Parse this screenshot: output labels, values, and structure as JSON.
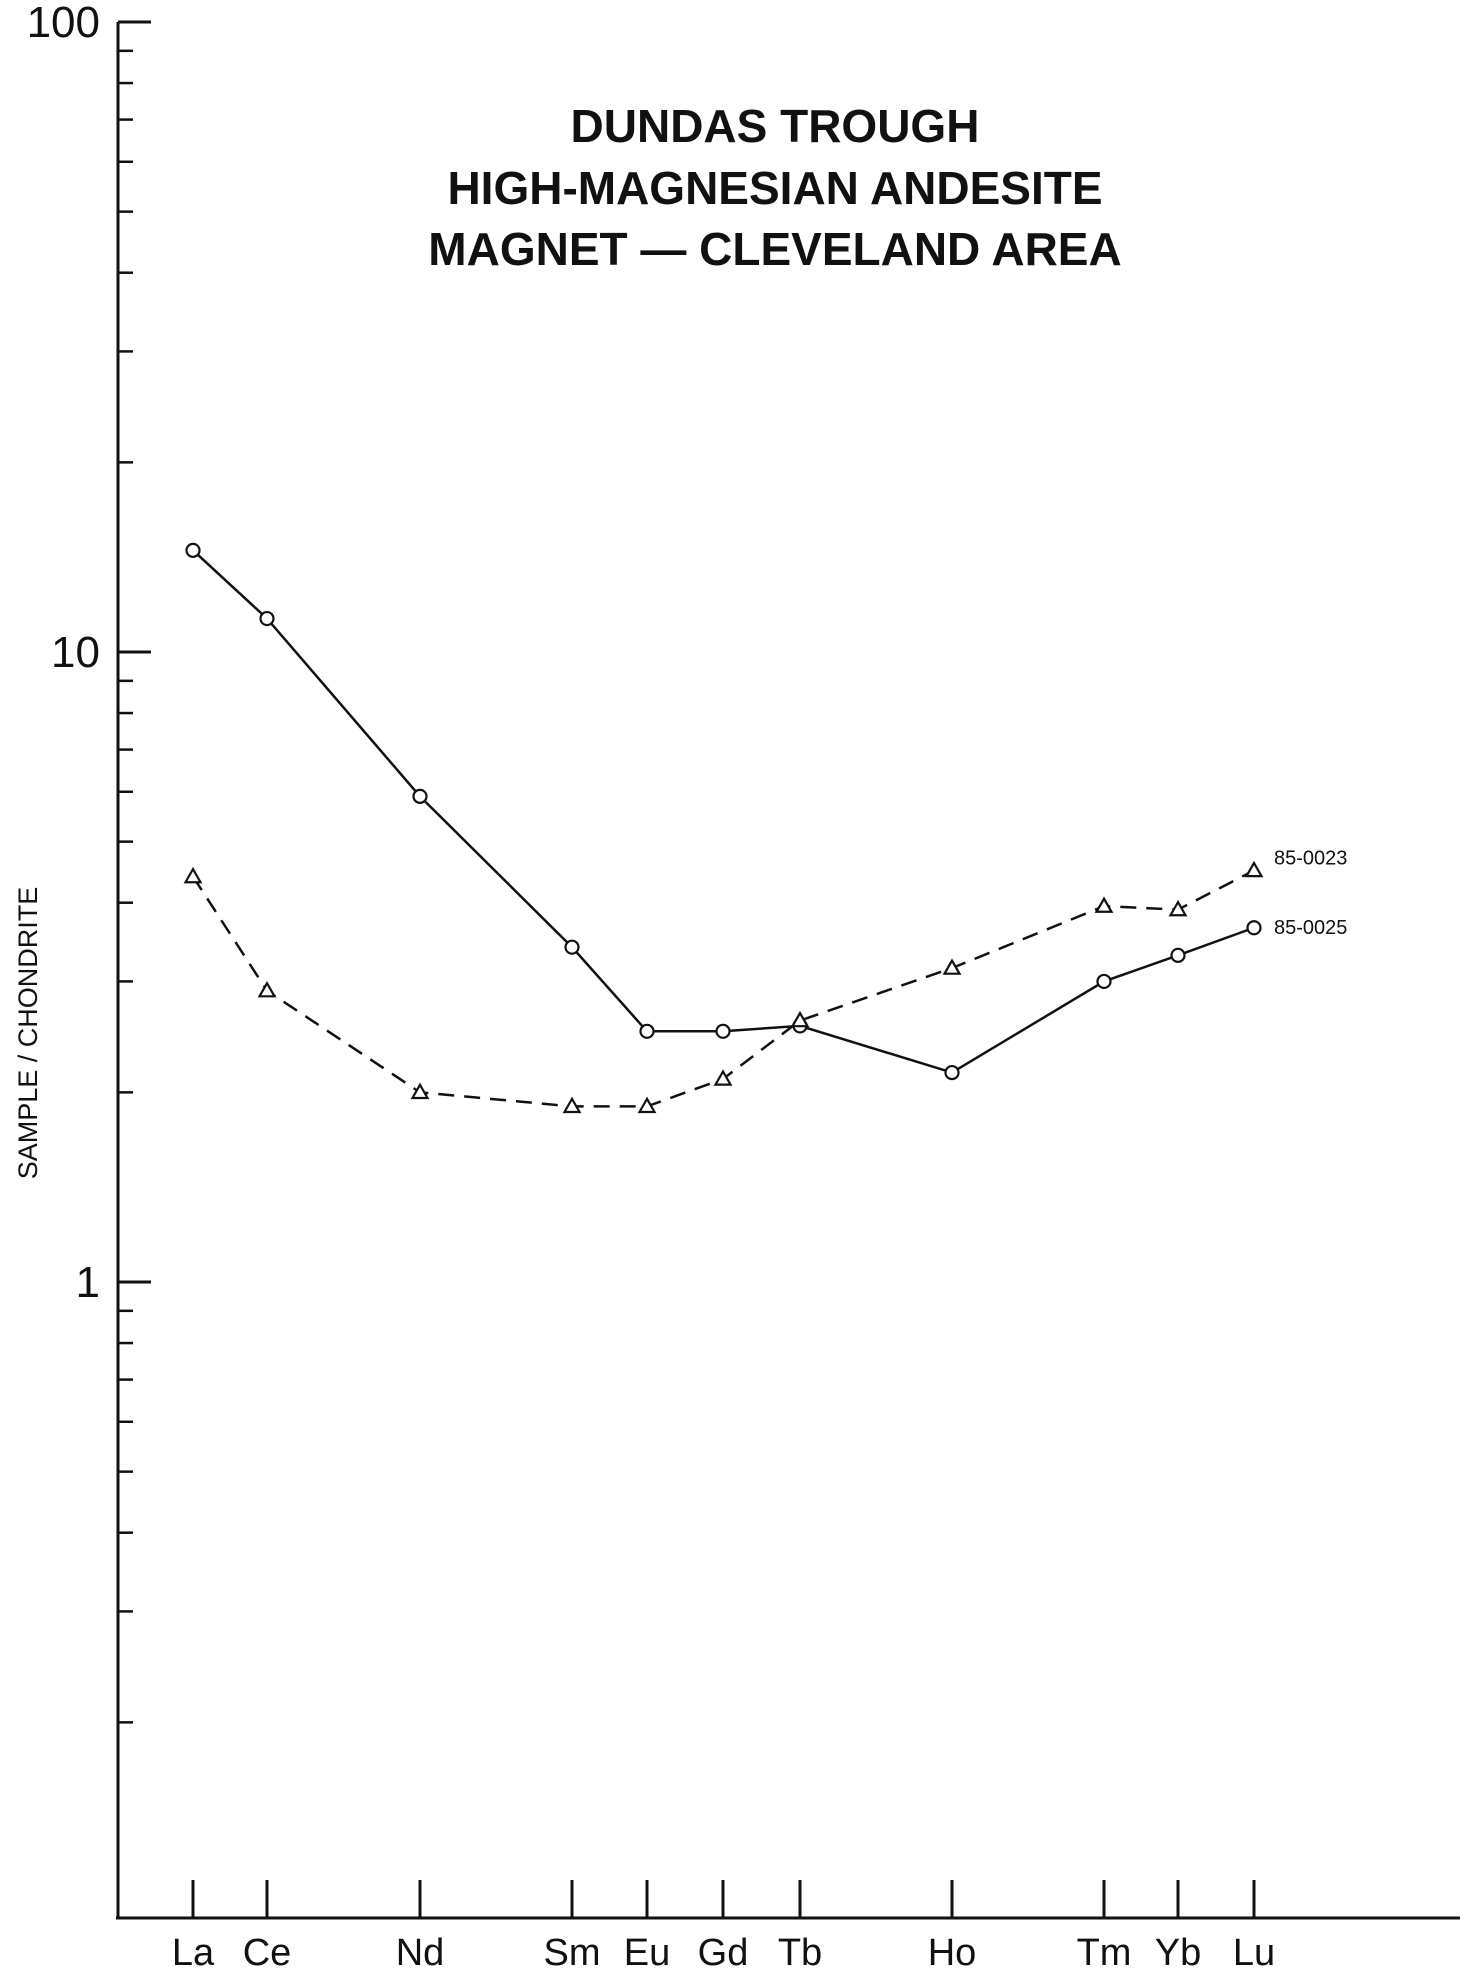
{
  "chart_data": {
    "type": "line",
    "title": [
      "DUNDAS TROUGH",
      "HIGH-MAGNESIAN ANDESITE",
      "MAGNET — CLEVELAND AREA"
    ],
    "ylabel": "SAMPLE / CHONDRITE",
    "xlabel": "",
    "y_scale": "log",
    "ylim": [
      0.1,
      100
    ],
    "y_tick_labels": [
      {
        "value": 100,
        "label": "100"
      },
      {
        "value": 10,
        "label": "10"
      },
      {
        "value": 1,
        "label": "1"
      }
    ],
    "categories": [
      "La",
      "Ce",
      "Nd",
      "Sm",
      "Eu",
      "Gd",
      "Tb",
      "Ho",
      "Tm",
      "Yb",
      "Lu"
    ],
    "series": [
      {
        "name": "85-0025",
        "marker": "circle",
        "line_style": "solid",
        "values": [
          14.5,
          11.3,
          5.9,
          3.4,
          2.5,
          2.5,
          2.55,
          2.15,
          3.0,
          3.3,
          3.65
        ]
      },
      {
        "name": "85-0023",
        "marker": "triangle",
        "line_style": "dashed",
        "values": [
          4.4,
          2.9,
          2.0,
          1.9,
          1.9,
          2.1,
          2.6,
          3.15,
          3.95,
          3.9,
          4.5
        ]
      }
    ],
    "grid": false,
    "legend": "inline labels at right end of series"
  }
}
